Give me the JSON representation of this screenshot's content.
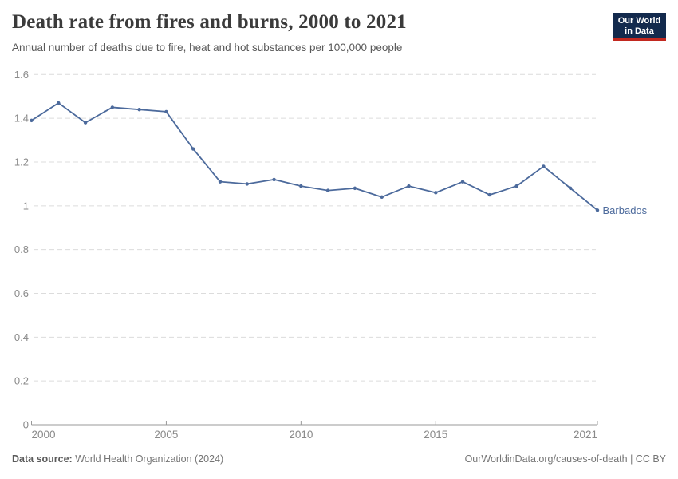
{
  "header": {
    "title": "Death rate from fires and burns, 2000 to 2021",
    "subtitle": "Annual number of deaths due to fire, heat and hot substances per 100,000 people",
    "logo": {
      "line1": "Our World",
      "line2": "in Data",
      "bg_color": "#132a4d",
      "accent_color": "#c2281f"
    }
  },
  "chart_data": {
    "type": "line",
    "title": "Death rate from fires and burns, 2000 to 2021",
    "subtitle": "Annual number of deaths due to fire, heat and hot substances per 100,000 people",
    "x": [
      2000,
      2001,
      2002,
      2003,
      2004,
      2005,
      2006,
      2007,
      2008,
      2009,
      2010,
      2011,
      2012,
      2013,
      2014,
      2015,
      2016,
      2017,
      2018,
      2019,
      2020,
      2021
    ],
    "series": [
      {
        "name": "Barbados",
        "color": "#4C6A9C",
        "values": [
          1.39,
          1.47,
          1.38,
          1.45,
          1.44,
          1.43,
          1.26,
          1.11,
          1.1,
          1.12,
          1.09,
          1.07,
          1.08,
          1.04,
          1.09,
          1.06,
          1.11,
          1.05,
          1.09,
          1.18,
          1.08,
          0.98
        ]
      }
    ],
    "xlabel": "",
    "ylabel": "",
    "ylim": [
      0,
      1.6
    ],
    "yticks": [
      0,
      0.2,
      0.4,
      0.6,
      0.8,
      1,
      1.2,
      1.4,
      1.6
    ],
    "xticks": [
      2000,
      2005,
      2010,
      2015,
      2021
    ],
    "grid": "horizontal-dashed",
    "legend_position": "end-of-line",
    "colors": {
      "gridline": "#dcdcdc",
      "axis_line": "#999999",
      "tick_label": "#8a8a8a"
    }
  },
  "footer": {
    "datasource_label": "Data source:",
    "datasource_value": " World Health Organization (2024)",
    "link": "OurWorldinData.org/causes-of-death | CC BY"
  }
}
